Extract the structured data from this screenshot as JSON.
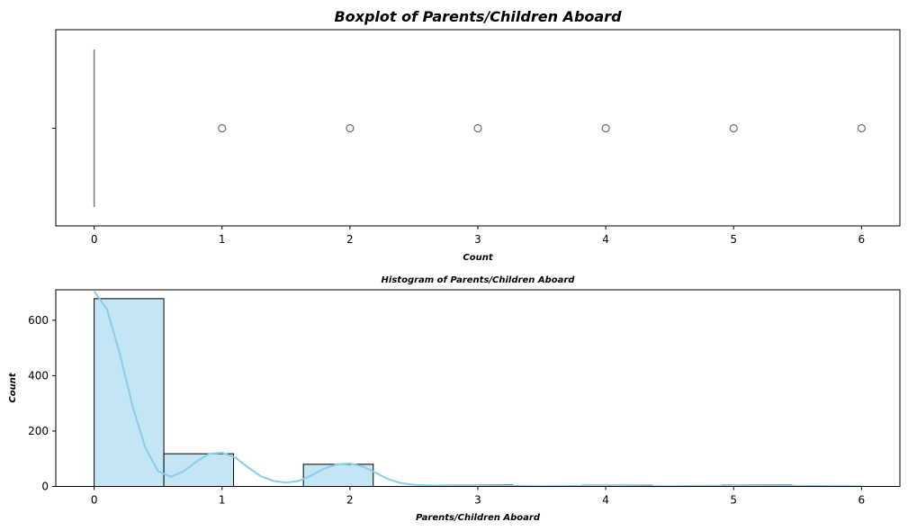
{
  "chart_data": [
    {
      "type": "boxplot",
      "title": "Boxplot of Parents/Children Aboard",
      "xlabel": "Count",
      "ylabel": "",
      "xlim": [
        -0.3,
        6.3
      ],
      "x_ticks": [
        0,
        1,
        2,
        3,
        4,
        5,
        6
      ],
      "box": {
        "min": 0,
        "q1": 0,
        "median": 0,
        "q3": 0,
        "max": 0
      },
      "outliers": [
        1,
        2,
        3,
        4,
        5,
        6
      ],
      "grid": false
    },
    {
      "type": "histogram",
      "title": "Histogram of Parents/Children Aboard",
      "xlabel": "Parents/Children Aboard",
      "ylabel": "Count",
      "xlim": [
        -0.3,
        6.3
      ],
      "ylim": [
        0,
        710
      ],
      "x_ticks": [
        0,
        1,
        2,
        3,
        4,
        5,
        6
      ],
      "y_ticks": [
        0,
        200,
        400,
        600
      ],
      "bins": [
        {
          "x0": 0.0,
          "x1": 0.545,
          "count": 678
        },
        {
          "x0": 0.545,
          "x1": 1.09,
          "count": 118
        },
        {
          "x0": 1.09,
          "x1": 1.636,
          "count": 0
        },
        {
          "x0": 1.636,
          "x1": 2.182,
          "count": 80
        },
        {
          "x0": 2.182,
          "x1": 2.727,
          "count": 0
        },
        {
          "x0": 2.727,
          "x1": 3.273,
          "count": 5
        },
        {
          "x0": 3.273,
          "x1": 3.818,
          "count": 0
        },
        {
          "x0": 3.818,
          "x1": 4.364,
          "count": 4
        },
        {
          "x0": 4.364,
          "x1": 4.909,
          "count": 0
        },
        {
          "x0": 4.909,
          "x1": 5.455,
          "count": 5
        },
        {
          "x0": 5.455,
          "x1": 6.0,
          "count": 1
        }
      ],
      "kde": {
        "x": [
          0,
          0.1,
          0.2,
          0.3,
          0.4,
          0.5,
          0.6,
          0.7,
          0.8,
          0.9,
          1.0,
          1.1,
          1.2,
          1.3,
          1.4,
          1.5,
          1.6,
          1.7,
          1.8,
          1.9,
          2.0,
          2.1,
          2.2,
          2.3,
          2.4,
          2.5,
          2.6,
          2.8,
          3.0,
          3.2,
          3.5,
          4.0,
          4.5,
          5.0,
          5.5,
          6.0
        ],
        "y": [
          705,
          640,
          480,
          290,
          140,
          55,
          35,
          55,
          90,
          118,
          122,
          105,
          70,
          38,
          20,
          14,
          20,
          40,
          65,
          80,
          83,
          72,
          50,
          26,
          12,
          6,
          4,
          3,
          3,
          2,
          1,
          2,
          1,
          3,
          2,
          1
        ]
      },
      "colors": {
        "bar_fill": "#c3e5f4",
        "bar_edge": "#000000",
        "kde": "#87ceeb"
      },
      "grid": false
    }
  ]
}
